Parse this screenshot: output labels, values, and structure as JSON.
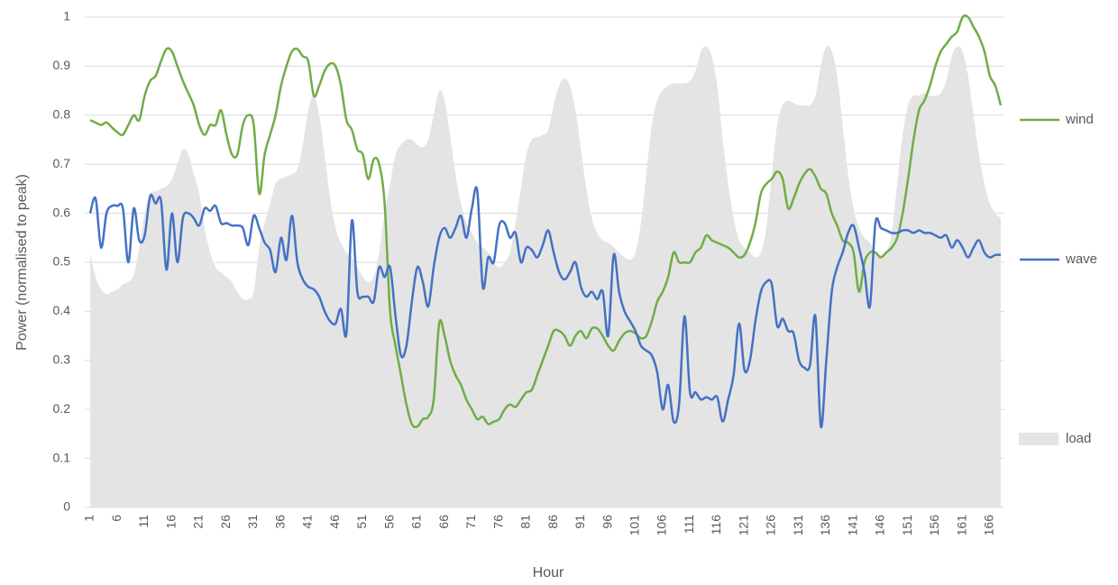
{
  "chart_data": {
    "type": "line",
    "x_label": "Hour",
    "y_label": "Power  (normalised to peak)",
    "categories": [
      "1",
      null,
      null,
      null,
      null,
      "6",
      null,
      null,
      null,
      null,
      "11",
      null,
      null,
      null,
      null,
      "16",
      null,
      null,
      null,
      null,
      "21",
      null,
      null,
      null,
      null,
      "26",
      null,
      null,
      null,
      null,
      "31",
      null,
      null,
      null,
      null,
      "36",
      null,
      null,
      null,
      null,
      "41",
      null,
      null,
      null,
      null,
      "46",
      null,
      null,
      null,
      null,
      "51",
      null,
      null,
      null,
      null,
      "56",
      null,
      null,
      null,
      null,
      "61",
      null,
      null,
      null,
      null,
      "66",
      null,
      null,
      null,
      null,
      "71",
      null,
      null,
      null,
      null,
      "76",
      null,
      null,
      null,
      null,
      "81",
      null,
      null,
      null,
      null,
      "86",
      null,
      null,
      null,
      null,
      "91",
      null,
      null,
      null,
      null,
      "96",
      null,
      null,
      null,
      null,
      "101",
      null,
      null,
      null,
      null,
      "106",
      null,
      null,
      null,
      null,
      "111",
      null,
      null,
      null,
      null,
      "116",
      null,
      null,
      null,
      null,
      "121",
      null,
      null,
      null,
      null,
      "126",
      null,
      null,
      null,
      null,
      "131",
      null,
      null,
      null,
      null,
      "136",
      null,
      null,
      null,
      null,
      "141",
      null,
      null,
      null,
      null,
      "146",
      null,
      null,
      null,
      null,
      "151",
      null,
      null,
      null,
      null,
      "156",
      null,
      null,
      null,
      null,
      "161",
      null,
      null,
      null,
      null,
      "166",
      null,
      null
    ],
    "series": [
      {
        "name": "load",
        "kind": "area",
        "color": "#e4e4e4",
        "values": [
          0.52,
          0.47,
          0.445,
          0.435,
          0.44,
          0.445,
          0.455,
          0.46,
          0.475,
          0.53,
          0.6,
          0.64,
          0.645,
          0.65,
          0.655,
          0.67,
          0.7,
          0.73,
          0.72,
          0.68,
          0.64,
          0.57,
          0.52,
          0.49,
          0.48,
          0.47,
          0.46,
          0.44,
          0.425,
          0.425,
          0.44,
          0.53,
          0.58,
          0.62,
          0.66,
          0.67,
          0.675,
          0.68,
          0.69,
          0.74,
          0.81,
          0.84,
          0.8,
          0.72,
          0.63,
          0.57,
          0.54,
          0.52,
          0.51,
          0.49,
          0.47,
          0.46,
          0.47,
          0.52,
          0.6,
          0.66,
          0.72,
          0.74,
          0.75,
          0.75,
          0.74,
          0.735,
          0.75,
          0.8,
          0.85,
          0.83,
          0.76,
          0.68,
          0.62,
          0.58,
          0.56,
          0.54,
          0.53,
          0.52,
          0.5,
          0.49,
          0.5,
          0.52,
          0.58,
          0.65,
          0.72,
          0.75,
          0.755,
          0.76,
          0.77,
          0.82,
          0.86,
          0.875,
          0.86,
          0.81,
          0.73,
          0.65,
          0.59,
          0.56,
          0.545,
          0.54,
          0.53,
          0.52,
          0.51,
          0.505,
          0.52,
          0.58,
          0.68,
          0.78,
          0.83,
          0.85,
          0.86,
          0.865,
          0.865,
          0.865,
          0.87,
          0.89,
          0.93,
          0.94,
          0.92,
          0.86,
          0.75,
          0.66,
          0.59,
          0.545,
          0.53,
          0.52,
          0.51,
          0.52,
          0.57,
          0.68,
          0.78,
          0.82,
          0.83,
          0.825,
          0.82,
          0.82,
          0.82,
          0.84,
          0.9,
          0.94,
          0.93,
          0.88,
          0.78,
          0.68,
          0.61,
          0.57,
          0.55,
          0.54,
          0.52,
          0.515,
          0.52,
          0.56,
          0.66,
          0.76,
          0.82,
          0.84,
          0.84,
          0.845,
          0.84,
          0.84,
          0.845,
          0.87,
          0.92,
          0.94,
          0.93,
          0.88,
          0.8,
          0.72,
          0.66,
          0.62,
          0.6,
          0.59
        ]
      },
      {
        "name": "wind",
        "kind": "line",
        "color": "#70ad47",
        "values": [
          0.79,
          0.785,
          0.78,
          0.785,
          0.775,
          0.765,
          0.76,
          0.78,
          0.8,
          0.79,
          0.84,
          0.87,
          0.88,
          0.91,
          0.935,
          0.93,
          0.9,
          0.87,
          0.845,
          0.82,
          0.78,
          0.76,
          0.78,
          0.78,
          0.81,
          0.76,
          0.72,
          0.72,
          0.78,
          0.8,
          0.78,
          0.64,
          0.72,
          0.76,
          0.8,
          0.86,
          0.9,
          0.93,
          0.935,
          0.92,
          0.91,
          0.84,
          0.86,
          0.89,
          0.905,
          0.9,
          0.86,
          0.79,
          0.77,
          0.73,
          0.72,
          0.67,
          0.71,
          0.7,
          0.62,
          0.4,
          0.33,
          0.27,
          0.21,
          0.17,
          0.165,
          0.18,
          0.185,
          0.22,
          0.375,
          0.35,
          0.3,
          0.27,
          0.25,
          0.22,
          0.2,
          0.18,
          0.185,
          0.17,
          0.175,
          0.18,
          0.2,
          0.21,
          0.205,
          0.22,
          0.235,
          0.24,
          0.27,
          0.3,
          0.33,
          0.36,
          0.36,
          0.35,
          0.33,
          0.35,
          0.36,
          0.345,
          0.365,
          0.365,
          0.35,
          0.33,
          0.32,
          0.34,
          0.355,
          0.36,
          0.355,
          0.345,
          0.35,
          0.38,
          0.42,
          0.44,
          0.47,
          0.52,
          0.5,
          0.5,
          0.5,
          0.52,
          0.53,
          0.555,
          0.545,
          0.54,
          0.535,
          0.53,
          0.52,
          0.51,
          0.515,
          0.54,
          0.58,
          0.64,
          0.66,
          0.67,
          0.685,
          0.67,
          0.61,
          0.63,
          0.66,
          0.68,
          0.69,
          0.675,
          0.65,
          0.64,
          0.6,
          0.575,
          0.545,
          0.54,
          0.52,
          0.44,
          0.5,
          0.52,
          0.52,
          0.51,
          0.52,
          0.53,
          0.55,
          0.6,
          0.67,
          0.75,
          0.81,
          0.83,
          0.86,
          0.9,
          0.93,
          0.945,
          0.96,
          0.97,
          1.0,
          1.0,
          0.98,
          0.96,
          0.93,
          0.88,
          0.86,
          0.82
        ]
      },
      {
        "name": "wave",
        "kind": "line",
        "color": "#4472c4",
        "values": [
          0.6,
          0.63,
          0.53,
          0.6,
          0.615,
          0.615,
          0.61,
          0.5,
          0.61,
          0.545,
          0.555,
          0.635,
          0.62,
          0.625,
          0.485,
          0.6,
          0.5,
          0.59,
          0.6,
          0.59,
          0.575,
          0.61,
          0.605,
          0.615,
          0.58,
          0.58,
          0.575,
          0.575,
          0.57,
          0.535,
          0.595,
          0.57,
          0.54,
          0.525,
          0.48,
          0.55,
          0.505,
          0.595,
          0.5,
          0.465,
          0.45,
          0.445,
          0.43,
          0.4,
          0.38,
          0.375,
          0.405,
          0.355,
          0.585,
          0.44,
          0.43,
          0.43,
          0.42,
          0.49,
          0.47,
          0.49,
          0.39,
          0.31,
          0.33,
          0.42,
          0.49,
          0.46,
          0.41,
          0.49,
          0.55,
          0.57,
          0.55,
          0.57,
          0.595,
          0.55,
          0.61,
          0.645,
          0.45,
          0.51,
          0.5,
          0.575,
          0.58,
          0.55,
          0.56,
          0.5,
          0.53,
          0.525,
          0.51,
          0.535,
          0.565,
          0.52,
          0.48,
          0.465,
          0.48,
          0.5,
          0.45,
          0.43,
          0.44,
          0.425,
          0.44,
          0.35,
          0.515,
          0.44,
          0.4,
          0.38,
          0.36,
          0.33,
          0.32,
          0.31,
          0.275,
          0.2,
          0.25,
          0.175,
          0.21,
          0.39,
          0.235,
          0.235,
          0.22,
          0.225,
          0.22,
          0.225,
          0.175,
          0.22,
          0.27,
          0.375,
          0.28,
          0.3,
          0.38,
          0.44,
          0.46,
          0.455,
          0.37,
          0.385,
          0.36,
          0.355,
          0.3,
          0.285,
          0.29,
          0.39,
          0.165,
          0.3,
          0.44,
          0.49,
          0.52,
          0.56,
          0.575,
          0.53,
          0.48,
          0.41,
          0.58,
          0.57,
          0.565,
          0.56,
          0.56,
          0.565,
          0.565,
          0.56,
          0.565,
          0.56,
          0.56,
          0.555,
          0.55,
          0.555,
          0.53,
          0.545,
          0.53,
          0.51,
          0.53,
          0.545,
          0.52,
          0.51,
          0.515,
          0.515
        ]
      }
    ],
    "ylim": [
      0,
      1
    ],
    "yticks": [
      0,
      0.1,
      0.2,
      0.3,
      0.4,
      0.5,
      0.6,
      0.7,
      0.8,
      0.9,
      1
    ],
    "grid": true,
    "legend": "right"
  }
}
